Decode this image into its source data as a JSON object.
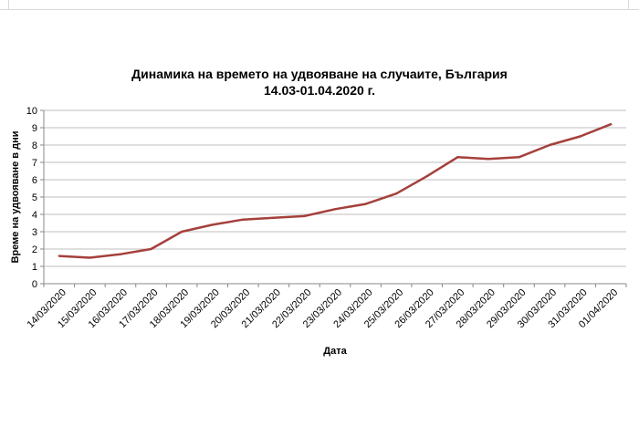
{
  "chart_data": {
    "type": "line",
    "title": "Динамика на времето на удвояване на случаите, България",
    "subtitle": "14.03-01.04.2020 г.",
    "xlabel": "Дата",
    "ylabel": "Време на удвояване в дни",
    "ylim": [
      0,
      10
    ],
    "yticks": [
      "0",
      "1",
      "2",
      "3",
      "4",
      "5",
      "6",
      "7",
      "8",
      "9",
      "10"
    ],
    "grid": true,
    "line_color": "#a5403c",
    "categories": [
      "14/03/2020",
      "15/03/2020",
      "16/03/2020",
      "17/03/2020",
      "18/03/2020",
      "19/03/2020",
      "20/03/2020",
      "21/03/2020",
      "22/03/2020",
      "23/03/2020",
      "24/03/2020",
      "25/03/2020",
      "26/03/2020",
      "27/03/2020",
      "28/03/2020",
      "29/03/2020",
      "30/03/2020",
      "31/03/2020",
      "01/04/2020"
    ],
    "values": [
      1.6,
      1.5,
      1.7,
      2.0,
      3.0,
      3.4,
      3.7,
      3.8,
      3.9,
      4.3,
      4.6,
      5.2,
      6.2,
      7.3,
      7.2,
      7.3,
      8.0,
      8.5,
      9.2
    ]
  }
}
